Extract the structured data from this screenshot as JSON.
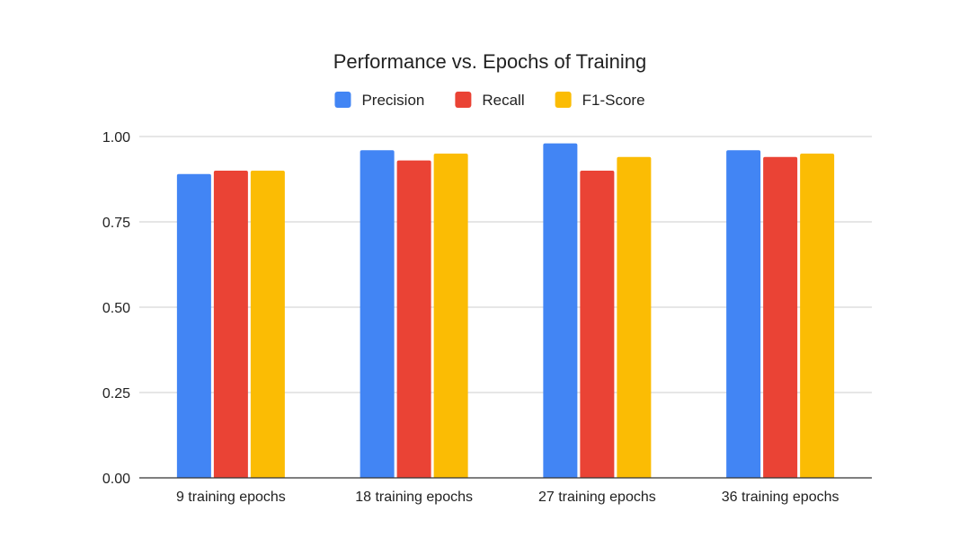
{
  "chart_data": {
    "type": "bar",
    "title": "Performance vs. Epochs of Training",
    "xlabel": "",
    "ylabel": "",
    "categories": [
      "9 training epochs",
      "18 training epochs",
      "27 training epochs",
      "36 training epochs"
    ],
    "series": [
      {
        "name": "Precision",
        "color": "#4285f4",
        "values": [
          0.89,
          0.96,
          0.98,
          0.96
        ]
      },
      {
        "name": "Recall",
        "color": "#ea4335",
        "values": [
          0.9,
          0.93,
          0.9,
          0.94
        ]
      },
      {
        "name": "F1-Score",
        "color": "#fbbc04",
        "values": [
          0.9,
          0.95,
          0.94,
          0.95
        ]
      }
    ],
    "ylim": [
      0,
      1
    ],
    "yticks": [
      "0.00",
      "0.25",
      "0.50",
      "0.75",
      "1.00"
    ],
    "ytick_values": [
      0,
      0.25,
      0.5,
      0.75,
      1.0
    ],
    "grid": true,
    "legend_position": "top-center"
  }
}
